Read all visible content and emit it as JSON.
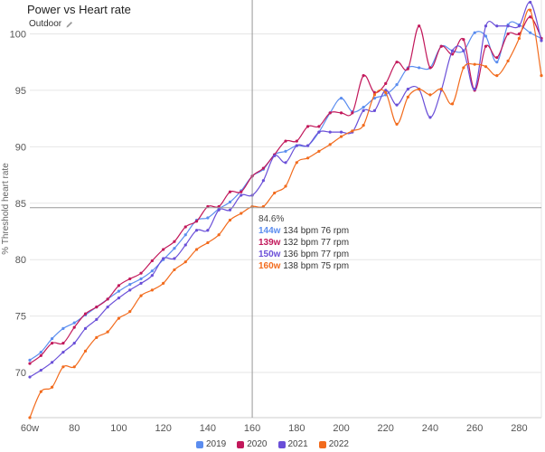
{
  "header": {
    "title": "Power vs Heart rate",
    "subtitle": "Outdoor"
  },
  "icons": {
    "edit": "pencil-icon"
  },
  "chart_data": {
    "type": "line",
    "ylabel": "% Threshold heart rate",
    "xlabel": "",
    "xlim": [
      60,
      290
    ],
    "ylim": [
      66,
      103
    ],
    "x_ticks": [
      "60w",
      "80",
      "100",
      "120",
      "140",
      "160",
      "180",
      "200",
      "220",
      "240",
      "260",
      "280"
    ],
    "x_tick_values": [
      60,
      80,
      100,
      120,
      140,
      160,
      180,
      200,
      220,
      240,
      260,
      280
    ],
    "y_ticks": [
      70,
      75,
      80,
      85,
      90,
      95,
      100
    ],
    "grid": "horizontal",
    "legend": "bottom",
    "crosshair": {
      "x": 160,
      "y": 84.6,
      "label": "84.6%"
    },
    "series": [
      {
        "name": "2019",
        "color": "#5b8def",
        "x": [
          60,
          65,
          70,
          75,
          80,
          85,
          90,
          95,
          100,
          105,
          110,
          115,
          120,
          125,
          130,
          135,
          140,
          145,
          150,
          155,
          160,
          165,
          170,
          175,
          180,
          185,
          190,
          195,
          200,
          205,
          210,
          215,
          220,
          225,
          230,
          235,
          240,
          245,
          250,
          255,
          260,
          265,
          270,
          275,
          280,
          285,
          290
        ],
        "values": [
          71.1,
          71.8,
          73,
          73.9,
          74.4,
          75.1,
          75.8,
          76.5,
          77.2,
          77.8,
          78.3,
          79,
          80,
          81,
          82.2,
          83.5,
          83.7,
          84.5,
          85.1,
          86.1,
          87.4,
          88,
          89.3,
          89.6,
          90.1,
          90.1,
          91.3,
          93,
          94.3,
          93.1,
          93.5,
          94.3,
          94.6,
          95.5,
          97,
          97,
          97,
          98.9,
          98.5,
          98.5,
          100.1,
          99.8,
          97.5,
          100.8,
          100.8,
          100.1,
          99.6
        ]
      },
      {
        "name": "2020",
        "color": "#c2185b",
        "x": [
          60,
          65,
          70,
          75,
          80,
          85,
          90,
          95,
          100,
          105,
          110,
          115,
          120,
          125,
          130,
          135,
          140,
          145,
          150,
          155,
          160,
          165,
          170,
          175,
          180,
          185,
          190,
          195,
          200,
          205,
          210,
          215,
          220,
          225,
          230,
          235,
          240,
          245,
          250,
          255,
          260,
          265,
          270,
          275,
          280,
          285,
          290
        ],
        "values": [
          70.8,
          71.5,
          72.6,
          72.6,
          74,
          75.2,
          75.8,
          76.5,
          77.7,
          78.3,
          78.8,
          79.9,
          80.9,
          81.6,
          82.9,
          83.4,
          84.7,
          84.7,
          86,
          86,
          87.4,
          88.1,
          89.3,
          90.5,
          90.5,
          91.8,
          91.8,
          93,
          93,
          93,
          96.3,
          94.8,
          95.6,
          97.5,
          96.9,
          100.7,
          97,
          98.9,
          98.2,
          99.5,
          95,
          98.9,
          97.9,
          100,
          100,
          101.5,
          99.6
        ]
      },
      {
        "name": "2021",
        "color": "#6a4fd8",
        "x": [
          60,
          65,
          70,
          75,
          80,
          85,
          90,
          95,
          100,
          105,
          110,
          115,
          120,
          125,
          130,
          135,
          140,
          145,
          150,
          155,
          160,
          165,
          170,
          175,
          180,
          185,
          190,
          195,
          200,
          205,
          210,
          215,
          220,
          225,
          230,
          235,
          240,
          245,
          250,
          255,
          260,
          265,
          270,
          275,
          280,
          285,
          290
        ],
        "values": [
          69.6,
          70.2,
          70.9,
          71.8,
          72.6,
          73.9,
          74.7,
          75.8,
          76.6,
          77.3,
          77.9,
          78.6,
          80.1,
          80.1,
          81.3,
          82.6,
          82.6,
          84.4,
          84.4,
          85.7,
          85.7,
          87,
          89.2,
          88.6,
          90.1,
          90.1,
          91.3,
          91.3,
          91.3,
          91.3,
          93.2,
          93.2,
          95,
          93.7,
          95.1,
          95.1,
          92.6,
          95,
          98.5,
          98.5,
          95.1,
          100.7,
          100.7,
          100.7,
          100.7,
          102.8,
          99.4
        ]
      },
      {
        "name": "2022",
        "color": "#f26b1d",
        "x": [
          60,
          65,
          70,
          75,
          80,
          85,
          90,
          95,
          100,
          105,
          110,
          115,
          120,
          125,
          130,
          135,
          140,
          145,
          150,
          155,
          160,
          165,
          170,
          175,
          180,
          185,
          190,
          195,
          200,
          205,
          210,
          215,
          220,
          225,
          230,
          235,
          240,
          245,
          250,
          255,
          260,
          265,
          270,
          275,
          280,
          285,
          290
        ],
        "values": [
          66,
          68.3,
          68.7,
          70.5,
          70.5,
          71.9,
          73.1,
          73.6,
          74.8,
          75.4,
          76.8,
          77.3,
          77.9,
          79.1,
          79.8,
          80.9,
          81.5,
          82.2,
          83.5,
          84.1,
          84.7,
          84.7,
          85.9,
          86.5,
          88.6,
          89,
          89.6,
          90.2,
          90.9,
          91.4,
          91.9,
          94.6,
          94.8,
          92,
          94.4,
          95.1,
          94.6,
          95.1,
          93.8,
          97,
          97.3,
          97.1,
          96.3,
          97.6,
          99.6,
          102.1,
          96.3
        ]
      }
    ]
  },
  "tooltip": {
    "header": "84.6%",
    "rows": [
      {
        "value": "144w",
        "text": "134 bpm 76 rpm",
        "color": "#5b8def"
      },
      {
        "value": "139w",
        "text": "132 bpm 77 rpm",
        "color": "#c2185b"
      },
      {
        "value": "150w",
        "text": "136 bpm 77 rpm",
        "color": "#6a4fd8"
      },
      {
        "value": "160w",
        "text": "138 bpm 75 rpm",
        "color": "#f26b1d"
      }
    ]
  }
}
